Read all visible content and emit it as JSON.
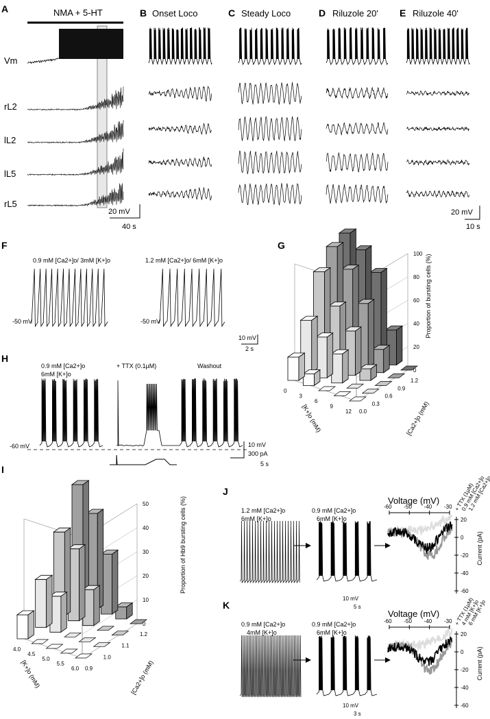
{
  "panels": {
    "A": {
      "letter": "A",
      "title": "NMA + 5-HT",
      "traces": [
        "Vm",
        "rL2",
        "lL2",
        "lL5",
        "rL5"
      ],
      "scale_v": "20 mV",
      "scale_t": "40 s"
    },
    "B": {
      "letter": "B",
      "title": "Onset Loco"
    },
    "C": {
      "letter": "C",
      "title": "Steady Loco"
    },
    "D": {
      "letter": "D",
      "title": "Riluzole 20'"
    },
    "E": {
      "letter": "E",
      "title": "Riluzole 40'",
      "scale_v": "20 mV",
      "scale_t": "10 s"
    },
    "F": {
      "letter": "F",
      "cond1": "0.9 mM [Ca2+]o/ 3mM [K+]o",
      "cond2": "1.2 mM [Ca2+]o/ 6mM [K+]o",
      "vm1": "-50 mV",
      "vm2": "-50 mV",
      "scale_v": "10 mV",
      "scale_t": "2 s"
    },
    "G": {
      "letter": "G",
      "zlabel": "Proportion of bursting cells (%)",
      "xlabel": "[K+]o (mM)",
      "ylabel": "[Ca2+]o (mM)",
      "zticks": [
        "0",
        "20",
        "40",
        "60",
        "80",
        "100"
      ],
      "kticks": [
        "12",
        "9",
        "6",
        "3",
        "0"
      ],
      "caticks": [
        "0.0",
        "0.3",
        "0.6",
        "0.9",
        "1.2"
      ]
    },
    "H": {
      "letter": "H",
      "cond_a": "0.9 mM [Ca2+]o",
      "cond_b": "6mM [K+]o",
      "ttx": "+ TTX (0.1µM)",
      "washout": "Washout",
      "vm": "-60 mV",
      "scale_v": "10 mV",
      "scale_i": "300 pA",
      "scale_t": "5 s"
    },
    "I": {
      "letter": "I",
      "zlabel": "Proportion of Hb9 bursting cells (%)",
      "xlabel": "[K+]o (mM)",
      "ylabel": "[Ca2+]o (mM)",
      "zticks": [
        "0",
        "10",
        "20",
        "30",
        "40",
        "50"
      ],
      "kticks": [
        "6.0",
        "5.5",
        "5.0",
        "4.5",
        "4.0"
      ],
      "caticks": [
        "0.9",
        "1.0",
        "1.1",
        "1.2"
      ]
    },
    "J": {
      "letter": "J",
      "cond1a": "1.2 mM [Ca2+]o",
      "cond1b": "6mM [K+]o",
      "cond2a": "0.9 mM [Ca2+]o",
      "cond2b": "6mM [K+]o",
      "vlabel": "Voltage (mV)",
      "vticks": [
        "-60",
        "-50",
        "-40",
        "-30"
      ],
      "ilabel": "Current (pA)",
      "iticks": [
        "20",
        "0",
        "-20",
        "-40",
        "-60"
      ],
      "legend": [
        "+ TTX (1µM)",
        "0.9 mM [Ca2+]o",
        "1.2 mM [Ca2+]o"
      ],
      "scale_v": "10 mV",
      "scale_t": "5 s"
    },
    "K": {
      "letter": "K",
      "cond1a": "0.9 mM [Ca2+]o",
      "cond1b": "4mM [K+]o",
      "cond2a": "0.9 mM [Ca2+]o",
      "cond2b": "6mM [K+]o",
      "vlabel": "Voltage (mV)",
      "vticks": [
        "-60",
        "-50",
        "-40",
        "-30"
      ],
      "ilabel": "Current (pA)",
      "iticks": [
        "20",
        "0",
        "-20",
        "-40",
        "-60"
      ],
      "legend": [
        "+ TTX (1µM)",
        "4 mM [K+]o",
        "6 mM [K+]o"
      ],
      "scale_v": "10 mV",
      "scale_t": "3 s"
    }
  },
  "chart_data": [
    {
      "type": "bar",
      "panel": "G",
      "title": "",
      "zlabel": "Proportion of bursting cells (%)",
      "x": "[K+]o (mM)",
      "y": "[Ca2+]o (mM)",
      "note": "3D bars, values approximate",
      "series": [
        {
          "name": "0.0",
          "values": [
            20,
            10,
            0,
            0,
            0
          ]
        },
        {
          "name": "0.3",
          "values": [
            45,
            35,
            25,
            0,
            0
          ]
        },
        {
          "name": "0.6",
          "values": [
            80,
            55,
            38,
            10,
            0
          ]
        },
        {
          "name": "0.9",
          "values": [
            95,
            80,
            55,
            20,
            0
          ]
        },
        {
          "name": "1.2",
          "values": [
            100,
            90,
            75,
            30,
            0
          ]
        }
      ]
    },
    {
      "type": "bar",
      "panel": "I",
      "title": "",
      "zlabel": "Proportion of Hb9 bursting cells (%)",
      "x": "[K+]o (mM)",
      "y": "[Ca2+]o (mM)",
      "series": [
        {
          "name": "0.9",
          "values": [
            10,
            0,
            0,
            0,
            0
          ]
        },
        {
          "name": "1.0",
          "values": [
            20,
            15,
            0,
            0,
            0
          ]
        },
        {
          "name": "1.1",
          "values": [
            35,
            30,
            15,
            0,
            0
          ]
        },
        {
          "name": "1.2",
          "values": [
            50,
            40,
            25,
            5,
            0
          ]
        }
      ]
    }
  ]
}
